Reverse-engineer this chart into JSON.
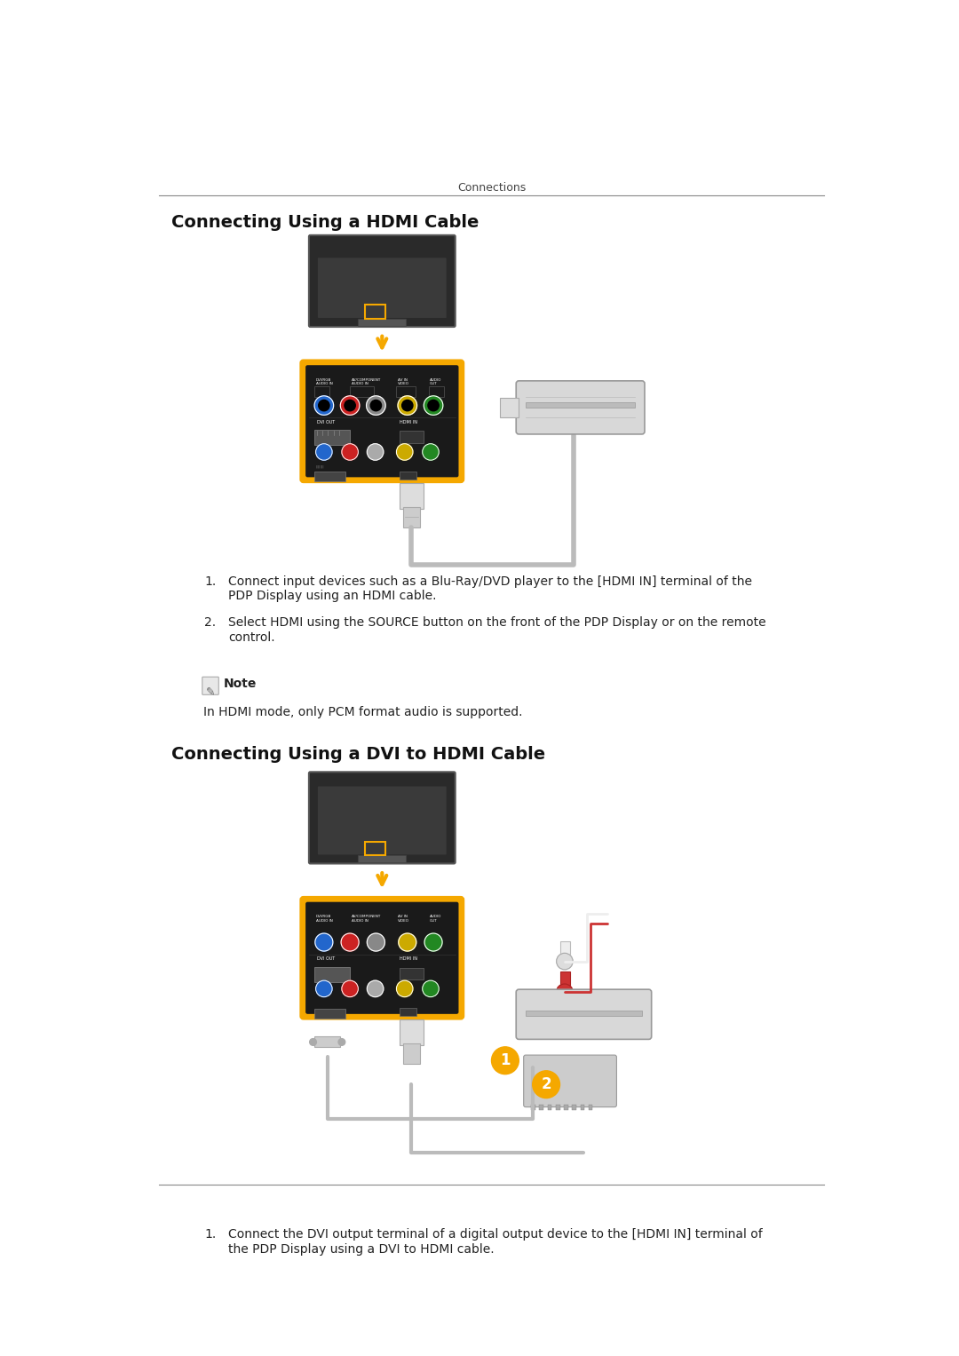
{
  "bg_color": "#ffffff",
  "header_text": "Connections",
  "accent_color": "#F5A800",
  "body_font_size": 9.5,
  "title_font_size": 13,
  "header_font_size": 9,
  "section1_title": "Connecting Using a HDMI Cable",
  "section2_title": "Connecting Using a DVI to HDMI Cable",
  "step1_hdmi_line1": "Connect input devices such as a Blu-Ray/DVD player to the [HDMI IN] terminal of the",
  "step1_hdmi_line2": "PDP Display using an HDMI cable.",
  "step2_hdmi_line1": "Select HDMI using the SOURCE button on the front of the PDP Display or on the remote",
  "step2_hdmi_line2": "control.",
  "note_label": "Note",
  "note_text": "In HDMI mode, only PCM format audio is supported.",
  "step1_dvi_line1": "Connect the DVI output terminal of a digital output device to the [HDMI IN] terminal of",
  "step1_dvi_line2": "the PDP Display using a DVI to HDMI cable."
}
